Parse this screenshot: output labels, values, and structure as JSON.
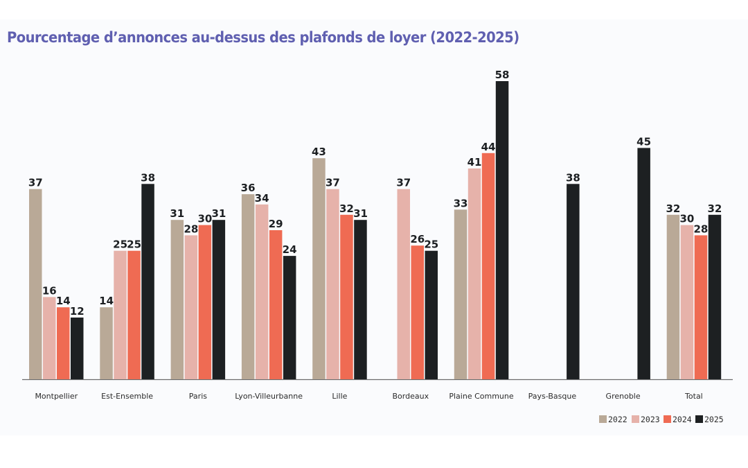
{
  "chart_data": {
    "type": "bar",
    "title": "Pourcentage d’annonces au-dessus des plafonds de loyer (2022-2025)",
    "xlabel": "",
    "ylabel": "",
    "ylim": [
      0,
      58
    ],
    "grid": false,
    "legend_position": "bottom-right",
    "categories": [
      "Montpellier",
      "Est-Ensemble",
      "Paris",
      "Lyon-Villeurbanne",
      "Lille",
      "Bordeaux",
      "Plaine Commune",
      "Pays-Basque",
      "Grenoble",
      "Total"
    ],
    "series": [
      {
        "name": "2022",
        "color": "#b9a997",
        "values": [
          37,
          14,
          31,
          36,
          43,
          null,
          33,
          null,
          null,
          32
        ]
      },
      {
        "name": "2023",
        "color": "#e6b2aa",
        "values": [
          16,
          25,
          28,
          34,
          37,
          37,
          41,
          null,
          null,
          30
        ]
      },
      {
        "name": "2024",
        "color": "#ef6b53",
        "values": [
          14,
          25,
          30,
          29,
          32,
          26,
          44,
          null,
          null,
          28
        ]
      },
      {
        "name": "2025",
        "color": "#1d2022",
        "values": [
          12,
          38,
          31,
          24,
          31,
          25,
          58,
          38,
          45,
          32
        ]
      }
    ]
  }
}
